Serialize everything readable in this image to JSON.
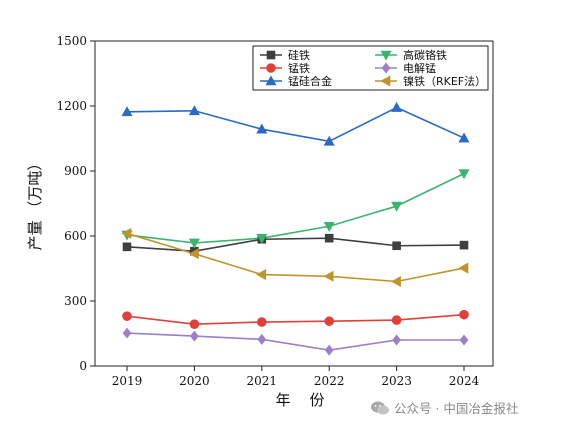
{
  "chart_data": {
    "type": "line",
    "categories": [
      "2019",
      "2020",
      "2021",
      "2022",
      "2023",
      "2024"
    ],
    "xlabel": "年    份",
    "ylabel": "产量   （万吨）",
    "ylim": [
      0,
      1500
    ],
    "yticks": [
      0,
      300,
      600,
      900,
      1200,
      1500
    ],
    "grid": false,
    "legend_position": "top-right",
    "series": [
      {
        "name": "硅铁",
        "color": "#3f3f3f",
        "marker": "square",
        "values": [
          550,
          530,
          585,
          590,
          555,
          558
        ]
      },
      {
        "name": "高碳铬铁",
        "color": "#3cb371",
        "marker": "triangle-down",
        "values": [
          605,
          568,
          590,
          645,
          738,
          888
        ]
      },
      {
        "name": "锰铁",
        "color": "#e0403a",
        "marker": "circle",
        "values": [
          230,
          193,
          203,
          207,
          212,
          237
        ]
      },
      {
        "name": "电解锰",
        "color": "#9b80c8",
        "marker": "diamond",
        "values": [
          152,
          138,
          123,
          73,
          120,
          120
        ]
      },
      {
        "name": "锰硅合金",
        "color": "#2a6ac4",
        "marker": "triangle-up",
        "values": [
          1173,
          1178,
          1093,
          1037,
          1193,
          1052
        ]
      },
      {
        "name": "镍铁（RKEF法）",
        "color": "#c09428",
        "marker": "triangle-left",
        "values": [
          612,
          518,
          422,
          414,
          390,
          452
        ]
      }
    ]
  },
  "watermark": {
    "text": "公众号 · 中国冶金报社",
    "icon": "wechat-icon"
  }
}
